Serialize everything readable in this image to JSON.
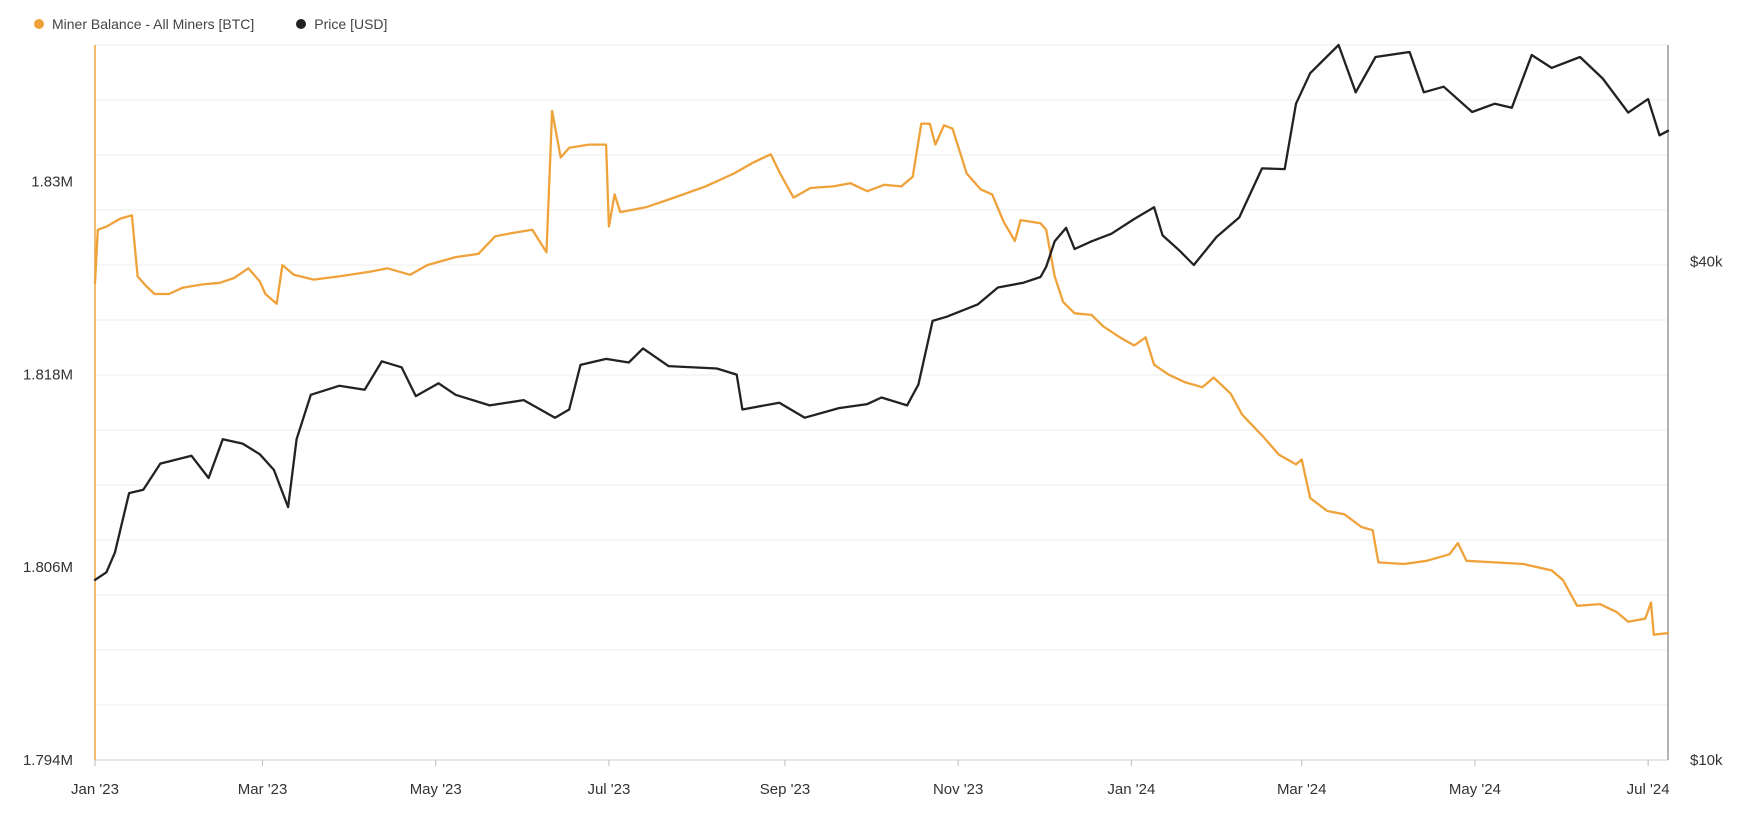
{
  "chart_data": {
    "type": "line",
    "legend": [
      {
        "label": "Miner Balance - All Miners [BTC]",
        "color": "#f0a23a"
      },
      {
        "label": "Price [USD]",
        "color": "#222222"
      }
    ],
    "x_tick_labels": [
      "Jan '23",
      "Mar '23",
      "May '23",
      "Jul '23",
      "Sep '23",
      "Nov '23",
      "Jan '24",
      "Mar '24",
      "May '24",
      "Jul '24"
    ],
    "x_tick_dates": [
      "2023-01-01",
      "2023-03-01",
      "2023-05-01",
      "2023-07-01",
      "2023-09-01",
      "2023-11-01",
      "2024-01-01",
      "2024-03-01",
      "2024-05-01",
      "2024-07-01"
    ],
    "x_range": [
      "2023-01-01",
      "2024-07-08"
    ],
    "y_left": {
      "ticks": [
        1.794,
        1.806,
        1.818,
        1.83
      ],
      "tick_labels": [
        "1.794M",
        "1.806M",
        "1.818M",
        "1.83M"
      ],
      "range": [
        1.794,
        1.8385
      ]
    },
    "y_right": {
      "ticks": [
        10000,
        40000
      ],
      "tick_labels": [
        "$10k",
        "$40k"
      ],
      "scale": "log",
      "range": [
        10000,
        73000
      ]
    },
    "grid": "horizontal",
    "series": [
      {
        "name": "Miner Balance - All Miners [BTC]",
        "axis": "left",
        "unit": "M BTC",
        "color": "#f0a23a",
        "points": [
          [
            "2023-01-01",
            1.8237
          ],
          [
            "2023-01-02",
            1.827
          ],
          [
            "2023-01-05",
            1.8272
          ],
          [
            "2023-01-10",
            1.8277
          ],
          [
            "2023-01-14",
            1.8279
          ],
          [
            "2023-01-16",
            1.8241
          ],
          [
            "2023-01-19",
            1.8235
          ],
          [
            "2023-01-22",
            1.823
          ],
          [
            "2023-01-27",
            1.823
          ],
          [
            "2023-02-01",
            1.8234
          ],
          [
            "2023-02-08",
            1.8236
          ],
          [
            "2023-02-14",
            1.8237
          ],
          [
            "2023-02-19",
            1.824
          ],
          [
            "2023-02-24",
            1.8246
          ],
          [
            "2023-02-28",
            1.8238
          ],
          [
            "2023-03-02",
            1.823
          ],
          [
            "2023-03-06",
            1.8224
          ],
          [
            "2023-03-08",
            1.8248
          ],
          [
            "2023-03-12",
            1.8242
          ],
          [
            "2023-03-19",
            1.8239
          ],
          [
            "2023-03-28",
            1.8241
          ],
          [
            "2023-04-08",
            1.8244
          ],
          [
            "2023-04-14",
            1.8246
          ],
          [
            "2023-04-22",
            1.8242
          ],
          [
            "2023-04-28",
            1.8248
          ],
          [
            "2023-05-08",
            1.8253
          ],
          [
            "2023-05-16",
            1.8255
          ],
          [
            "2023-05-22",
            1.8266
          ],
          [
            "2023-05-28",
            1.8268
          ],
          [
            "2023-06-04",
            1.827
          ],
          [
            "2023-06-09",
            1.8256
          ],
          [
            "2023-06-11",
            1.8344
          ],
          [
            "2023-06-14",
            1.8315
          ],
          [
            "2023-06-17",
            1.8321
          ],
          [
            "2023-06-24",
            1.8323
          ],
          [
            "2023-06-30",
            1.8323
          ],
          [
            "2023-07-01",
            1.8272
          ],
          [
            "2023-07-03",
            1.8292
          ],
          [
            "2023-07-05",
            1.8281
          ],
          [
            "2023-07-14",
            1.8284
          ],
          [
            "2023-07-24",
            1.829
          ],
          [
            "2023-08-04",
            1.8297
          ],
          [
            "2023-08-14",
            1.8305
          ],
          [
            "2023-08-21",
            1.8312
          ],
          [
            "2023-08-27",
            1.8317
          ],
          [
            "2023-08-30",
            1.8306
          ],
          [
            "2023-09-04",
            1.829
          ],
          [
            "2023-09-10",
            1.8296
          ],
          [
            "2023-09-18",
            1.8297
          ],
          [
            "2023-09-24",
            1.8299
          ],
          [
            "2023-09-30",
            1.8294
          ],
          [
            "2023-10-06",
            1.8298
          ],
          [
            "2023-10-12",
            1.8297
          ],
          [
            "2023-10-16",
            1.8303
          ],
          [
            "2023-10-19",
            1.8336
          ],
          [
            "2023-10-22",
            1.8336
          ],
          [
            "2023-10-24",
            1.8323
          ],
          [
            "2023-10-27",
            1.8335
          ],
          [
            "2023-10-30",
            1.8333
          ],
          [
            "2023-11-04",
            1.8305
          ],
          [
            "2023-11-09",
            1.8295
          ],
          [
            "2023-11-13",
            1.8292
          ],
          [
            "2023-11-17",
            1.8275
          ],
          [
            "2023-11-21",
            1.8263
          ],
          [
            "2023-11-23",
            1.8276
          ],
          [
            "2023-11-30",
            1.8274
          ],
          [
            "2023-12-02",
            1.827
          ],
          [
            "2023-12-05",
            1.8241
          ],
          [
            "2023-12-08",
            1.8225
          ],
          [
            "2023-12-12",
            1.8218
          ],
          [
            "2023-12-18",
            1.8217
          ],
          [
            "2023-12-22",
            1.821
          ],
          [
            "2023-12-28",
            1.8203
          ],
          [
            "2024-01-02",
            1.8198
          ],
          [
            "2024-01-06",
            1.8203
          ],
          [
            "2024-01-09",
            1.8186
          ],
          [
            "2024-01-14",
            1.818
          ],
          [
            "2024-01-20",
            1.8175
          ],
          [
            "2024-01-26",
            1.8172
          ],
          [
            "2024-01-30",
            1.8178
          ],
          [
            "2024-02-05",
            1.8168
          ],
          [
            "2024-02-09",
            1.8155
          ],
          [
            "2024-02-16",
            1.8142
          ],
          [
            "2024-02-22",
            1.813
          ],
          [
            "2024-02-28",
            1.8124
          ],
          [
            "2024-03-01",
            1.8127
          ],
          [
            "2024-03-04",
            1.8103
          ],
          [
            "2024-03-10",
            1.8095
          ],
          [
            "2024-03-16",
            1.8093
          ],
          [
            "2024-03-22",
            1.8085
          ],
          [
            "2024-03-26",
            1.8083
          ],
          [
            "2024-03-28",
            1.8063
          ],
          [
            "2024-04-06",
            1.8062
          ],
          [
            "2024-04-14",
            1.8064
          ],
          [
            "2024-04-22",
            1.8068
          ],
          [
            "2024-04-25",
            1.8075
          ],
          [
            "2024-04-28",
            1.8064
          ],
          [
            "2024-05-08",
            1.8063
          ],
          [
            "2024-05-18",
            1.8062
          ],
          [
            "2024-05-28",
            1.8058
          ],
          [
            "2024-06-01",
            1.8052
          ],
          [
            "2024-06-06",
            1.8036
          ],
          [
            "2024-06-14",
            1.8037
          ],
          [
            "2024-06-20",
            1.8032
          ],
          [
            "2024-06-24",
            1.8026
          ],
          [
            "2024-06-30",
            1.8028
          ],
          [
            "2024-07-02",
            1.8038
          ],
          [
            "2024-07-03",
            1.8018
          ],
          [
            "2024-07-08",
            1.8019
          ]
        ]
      },
      {
        "name": "Price [USD]",
        "axis": "right",
        "unit": "USD",
        "color": "#222222",
        "points": [
          [
            "2023-01-01",
            16500
          ],
          [
            "2023-01-05",
            16850
          ],
          [
            "2023-01-08",
            17800
          ],
          [
            "2023-01-13",
            21000
          ],
          [
            "2023-01-18",
            21200
          ],
          [
            "2023-01-24",
            22800
          ],
          [
            "2023-02-04",
            23300
          ],
          [
            "2023-02-10",
            21900
          ],
          [
            "2023-02-15",
            24400
          ],
          [
            "2023-02-22",
            24100
          ],
          [
            "2023-02-28",
            23400
          ],
          [
            "2023-03-05",
            22400
          ],
          [
            "2023-03-10",
            20200
          ],
          [
            "2023-03-13",
            24400
          ],
          [
            "2023-03-18",
            27600
          ],
          [
            "2023-03-28",
            28300
          ],
          [
            "2023-04-06",
            28000
          ],
          [
            "2023-04-12",
            30300
          ],
          [
            "2023-04-19",
            29800
          ],
          [
            "2023-04-24",
            27500
          ],
          [
            "2023-05-02",
            28500
          ],
          [
            "2023-05-08",
            27600
          ],
          [
            "2023-05-20",
            26800
          ],
          [
            "2023-06-01",
            27200
          ],
          [
            "2023-06-12",
            25900
          ],
          [
            "2023-06-17",
            26500
          ],
          [
            "2023-06-21",
            30000
          ],
          [
            "2023-06-30",
            30500
          ],
          [
            "2023-07-08",
            30200
          ],
          [
            "2023-07-13",
            31400
          ],
          [
            "2023-07-22",
            29900
          ],
          [
            "2023-08-08",
            29700
          ],
          [
            "2023-08-15",
            29200
          ],
          [
            "2023-08-17",
            26500
          ],
          [
            "2023-08-30",
            27000
          ],
          [
            "2023-09-08",
            25900
          ],
          [
            "2023-09-20",
            26600
          ],
          [
            "2023-09-30",
            26900
          ],
          [
            "2023-10-05",
            27400
          ],
          [
            "2023-10-14",
            26800
          ],
          [
            "2023-10-18",
            28400
          ],
          [
            "2023-10-23",
            33900
          ],
          [
            "2023-10-28",
            34300
          ],
          [
            "2023-11-08",
            35500
          ],
          [
            "2023-11-15",
            37200
          ],
          [
            "2023-11-24",
            37700
          ],
          [
            "2023-11-30",
            38300
          ],
          [
            "2023-12-02",
            39400
          ],
          [
            "2023-12-05",
            42300
          ],
          [
            "2023-12-09",
            43900
          ],
          [
            "2023-12-12",
            41400
          ],
          [
            "2023-12-18",
            42300
          ],
          [
            "2023-12-25",
            43200
          ],
          [
            "2024-01-02",
            45000
          ],
          [
            "2024-01-09",
            46500
          ],
          [
            "2024-01-12",
            43000
          ],
          [
            "2024-01-18",
            41200
          ],
          [
            "2024-01-23",
            39600
          ],
          [
            "2024-01-31",
            42800
          ],
          [
            "2024-02-08",
            45200
          ],
          [
            "2024-02-16",
            51800
          ],
          [
            "2024-02-24",
            51700
          ],
          [
            "2024-02-28",
            62000
          ],
          [
            "2024-03-04",
            67500
          ],
          [
            "2024-03-14",
            73000
          ],
          [
            "2024-03-20",
            64000
          ],
          [
            "2024-03-27",
            70600
          ],
          [
            "2024-04-08",
            71600
          ],
          [
            "2024-04-13",
            64000
          ],
          [
            "2024-04-20",
            65000
          ],
          [
            "2024-04-30",
            60600
          ],
          [
            "2024-05-08",
            62000
          ],
          [
            "2024-05-14",
            61300
          ],
          [
            "2024-05-21",
            71000
          ],
          [
            "2024-05-28",
            68500
          ],
          [
            "2024-06-07",
            70600
          ],
          [
            "2024-06-15",
            66500
          ],
          [
            "2024-06-24",
            60500
          ],
          [
            "2024-07-01",
            62800
          ],
          [
            "2024-07-05",
            56800
          ],
          [
            "2024-07-08",
            57500
          ]
        ]
      }
    ]
  }
}
